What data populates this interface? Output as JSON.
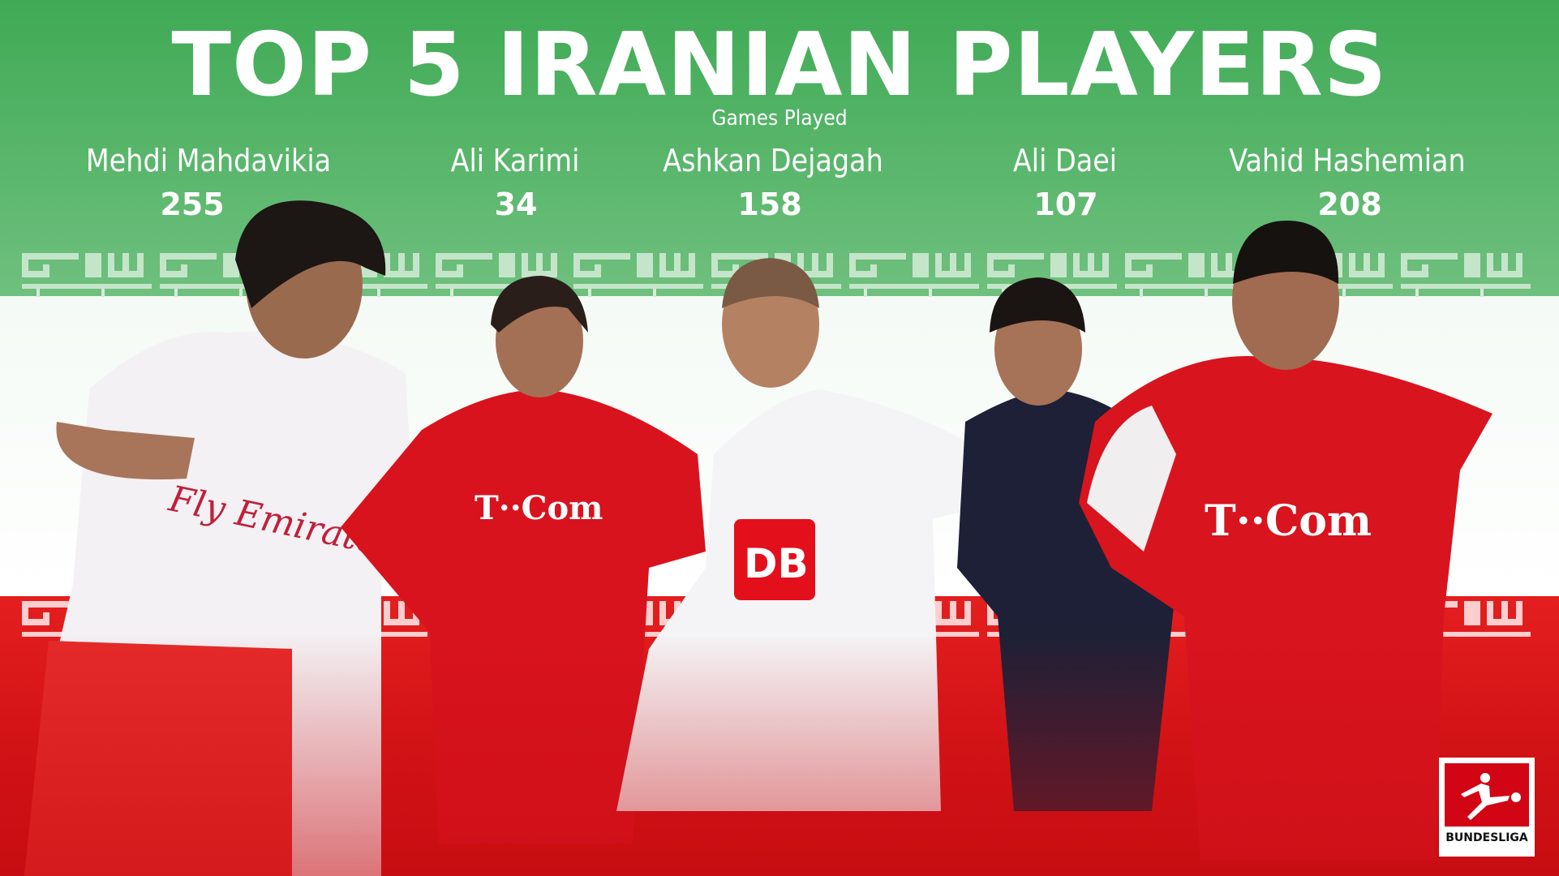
{
  "title": "TOP 5 IRANIAN PLAYERS",
  "subtitle": "Games Played",
  "players": [
    {
      "name": "Mehdi Mahdavikia",
      "games": "255"
    },
    {
      "name": "Ali Karimi",
      "games": "34"
    },
    {
      "name": "Ashkan Dejagah",
      "games": "158"
    },
    {
      "name": "Ali Daei",
      "games": "107"
    },
    {
      "name": "Vahid Hashemian",
      "games": "208"
    }
  ],
  "logo": {
    "text": "BUNDESLIGA"
  },
  "colors": {
    "green": "#3faa55",
    "white": "#ffffff",
    "red": "#d7141a"
  }
}
